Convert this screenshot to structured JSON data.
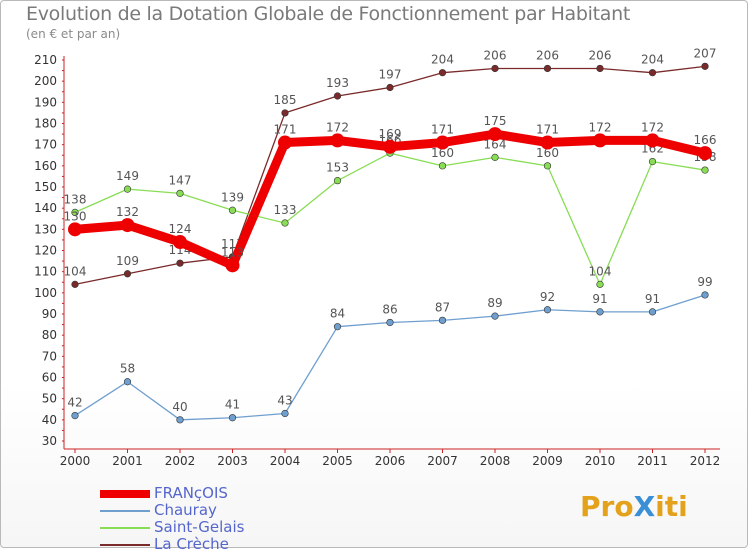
{
  "title": "Evolution de la Dotation Globale de Fonctionnement par Habitant",
  "subtitle": "(en € et par an)",
  "logo_text": "ProXiti",
  "chart_data": {
    "type": "line",
    "title": "Evolution de la Dotation Globale de Fonctionnement par Habitant",
    "subtitle": "(en € et par an)",
    "xlabel": "",
    "ylabel": "",
    "categories": [
      "2000",
      "2001",
      "2002",
      "2003",
      "2004",
      "2005",
      "2006",
      "2007",
      "2008",
      "2009",
      "2010",
      "2011",
      "2012"
    ],
    "yticks": [
      "30",
      "40",
      "50",
      "60",
      "70",
      "80",
      "90",
      "100",
      "110",
      "120",
      "130",
      "140",
      "150",
      "160",
      "170",
      "180",
      "190",
      "200",
      "210"
    ],
    "ylim": [
      30,
      210
    ],
    "grid": false,
    "legend_position": "bottom-left",
    "series": [
      {
        "name": "FRANçOIS",
        "color": "#ee0000",
        "values": [
          130,
          132,
          124,
          113,
          171,
          172,
          169,
          171,
          175,
          171,
          172,
          172,
          166
        ],
        "labels": [
          "130",
          "132",
          "124",
          "113",
          "171",
          "172",
          "169",
          "171",
          "175",
          "171",
          "172",
          "172",
          "166"
        ]
      },
      {
        "name": "Chauray",
        "color": "#6f9fcf",
        "values": [
          42,
          58,
          40,
          41,
          43,
          84,
          86,
          87,
          89,
          92,
          91,
          91,
          99
        ],
        "labels": [
          "42",
          "58",
          "40",
          "41",
          "43",
          "84",
          "86",
          "87",
          "89",
          "92",
          "91",
          "91",
          "99"
        ]
      },
      {
        "name": "Saint-Gelais",
        "color": "#88dd55",
        "values": [
          138,
          149,
          147,
          139,
          133,
          153,
          166,
          160,
          164,
          160,
          104,
          162,
          158
        ],
        "labels": [
          "138",
          "149",
          "147",
          "139",
          "133",
          "153",
          "166",
          "160",
          "164",
          "160",
          "104",
          "162",
          "158"
        ]
      },
      {
        "name": "La Crèche",
        "color": "#7a2a2a",
        "values": [
          104,
          109,
          114,
          117,
          185,
          193,
          197,
          204,
          206,
          206,
          206,
          204,
          207
        ],
        "labels": [
          "104",
          "109",
          "114",
          "117",
          "185",
          "193",
          "197",
          "204",
          "206",
          "206",
          "206",
          "204",
          "207"
        ]
      }
    ]
  }
}
